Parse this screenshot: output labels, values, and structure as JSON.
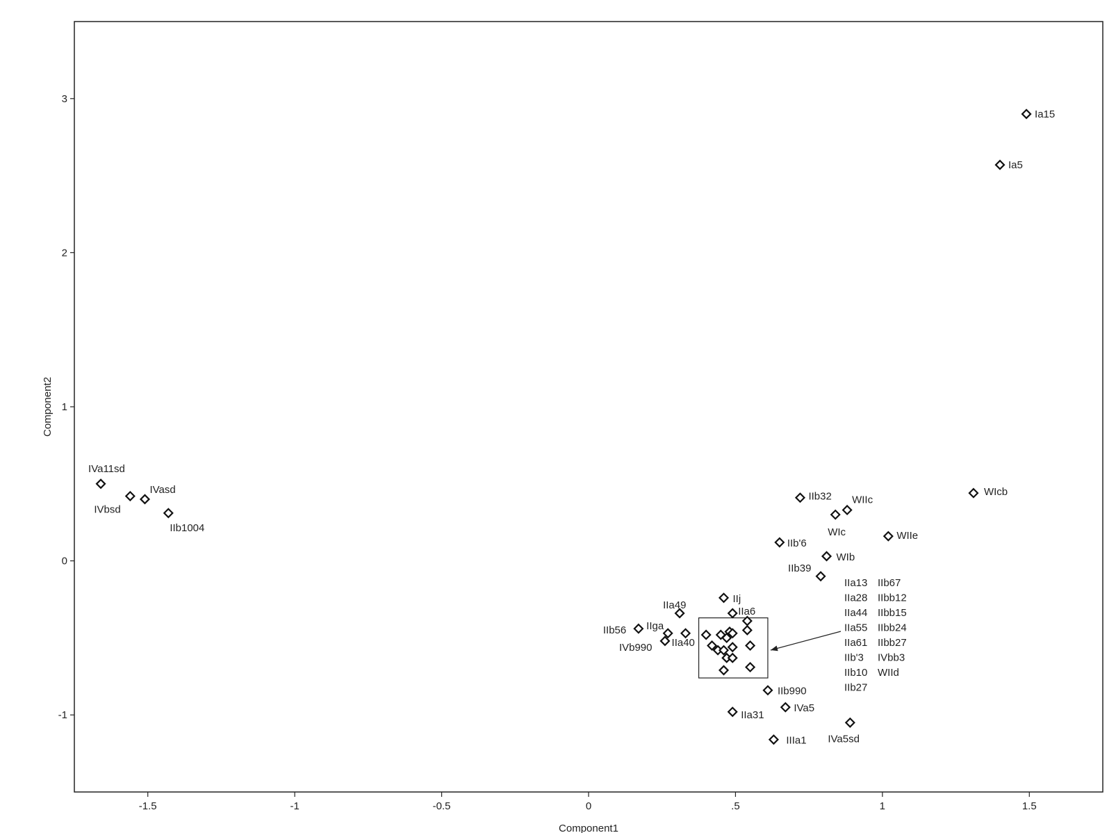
{
  "chart_data": {
    "type": "scatter",
    "xlabel": "Component1",
    "ylabel": "Component2",
    "xlim": [
      -1.75,
      1.75
    ],
    "ylim": [
      -1.5,
      3.5
    ],
    "xticks": [
      {
        "v": -1.5,
        "label": "-1.5"
      },
      {
        "v": -1,
        "label": "-1"
      },
      {
        "v": -0.5,
        "label": "-0.5"
      },
      {
        "v": 0,
        "label": "0"
      },
      {
        "v": 0.5,
        "label": ".5"
      },
      {
        "v": 1,
        "label": "1"
      },
      {
        "v": 1.5,
        "label": "1.5"
      }
    ],
    "yticks": [
      {
        "v": -1,
        "label": "-1"
      },
      {
        "v": 0,
        "label": "0"
      },
      {
        "v": 1,
        "label": "1"
      },
      {
        "v": 2,
        "label": "2"
      },
      {
        "v": 3,
        "label": "3"
      }
    ],
    "grid": false,
    "labeled_points": [
      {
        "label": "Ia15",
        "x": 1.49,
        "y": 2.9
      },
      {
        "label": "Ia5",
        "x": 1.4,
        "y": 2.57
      },
      {
        "label": "WIcb",
        "x": 1.31,
        "y": 0.44
      },
      {
        "label": "IVa11sd",
        "x": -1.66,
        "y": 0.5
      },
      {
        "label": "IVbsd",
        "x": -1.56,
        "y": 0.42
      },
      {
        "label": "IVasd",
        "x": -1.51,
        "y": 0.4
      },
      {
        "label": "IIb1004",
        "x": -1.43,
        "y": 0.31
      },
      {
        "label": "IIb32",
        "x": 0.72,
        "y": 0.41
      },
      {
        "label": "WIIc",
        "x": 0.88,
        "y": 0.33
      },
      {
        "label": "WIc",
        "x": 0.84,
        "y": 0.3
      },
      {
        "label": "WIIe",
        "x": 1.02,
        "y": 0.16
      },
      {
        "label": "IIb'6",
        "x": 0.65,
        "y": 0.12
      },
      {
        "label": "WIb",
        "x": 0.81,
        "y": 0.03
      },
      {
        "label": "IIb39",
        "x": 0.79,
        "y": -0.1
      },
      {
        "label": "IIj",
        "x": 0.46,
        "y": -0.24
      },
      {
        "label": "IIa49",
        "x": 0.31,
        "y": -0.34
      },
      {
        "label": "IIa6",
        "x": 0.49,
        "y": -0.34
      },
      {
        "label": "IIb56",
        "x": 0.17,
        "y": -0.44
      },
      {
        "label": "IIga",
        "x": 0.27,
        "y": -0.47
      },
      {
        "label": "IIa40",
        "x": 0.33,
        "y": -0.47
      },
      {
        "label": "IVb990",
        "x": 0.26,
        "y": -0.52
      },
      {
        "label": "IIb990",
        "x": 0.61,
        "y": -0.84
      },
      {
        "label": "IVa5",
        "x": 0.67,
        "y": -0.95
      },
      {
        "label": "IIa31",
        "x": 0.49,
        "y": -0.98
      },
      {
        "label": "IVa5sd",
        "x": 0.89,
        "y": -1.05
      },
      {
        "label": "IIIa1",
        "x": 0.63,
        "y": -1.16
      }
    ],
    "cluster_points": [
      {
        "x": 0.4,
        "y": -0.48
      },
      {
        "x": 0.45,
        "y": -0.48
      },
      {
        "x": 0.48,
        "y": -0.46
      },
      {
        "x": 0.49,
        "y": -0.47
      },
      {
        "x": 0.47,
        "y": -0.5
      },
      {
        "x": 0.42,
        "y": -0.55
      },
      {
        "x": 0.44,
        "y": -0.58
      },
      {
        "x": 0.46,
        "y": -0.58
      },
      {
        "x": 0.49,
        "y": -0.56
      },
      {
        "x": 0.47,
        "y": -0.63
      },
      {
        "x": 0.49,
        "y": -0.63
      },
      {
        "x": 0.54,
        "y": -0.39
      },
      {
        "x": 0.54,
        "y": -0.45
      },
      {
        "x": 0.55,
        "y": -0.55
      },
      {
        "x": 0.46,
        "y": -0.71
      },
      {
        "x": 0.55,
        "y": -0.69
      }
    ],
    "cluster_box": {
      "x0": 0.375,
      "x1": 0.61,
      "y0": -0.76,
      "y1": -0.37
    },
    "cluster_labels": [
      [
        "IIa13",
        "IIb67"
      ],
      [
        "IIa28",
        "IIbb12"
      ],
      [
        "IIa44",
        "IIbb15"
      ],
      [
        "IIa55",
        "IIbb24"
      ],
      [
        "IIa61",
        "IIbb27"
      ],
      [
        "IIb'3",
        "IVbb3"
      ],
      [
        "IIb10",
        "WIId"
      ],
      [
        "IIb27",
        ""
      ]
    ]
  }
}
